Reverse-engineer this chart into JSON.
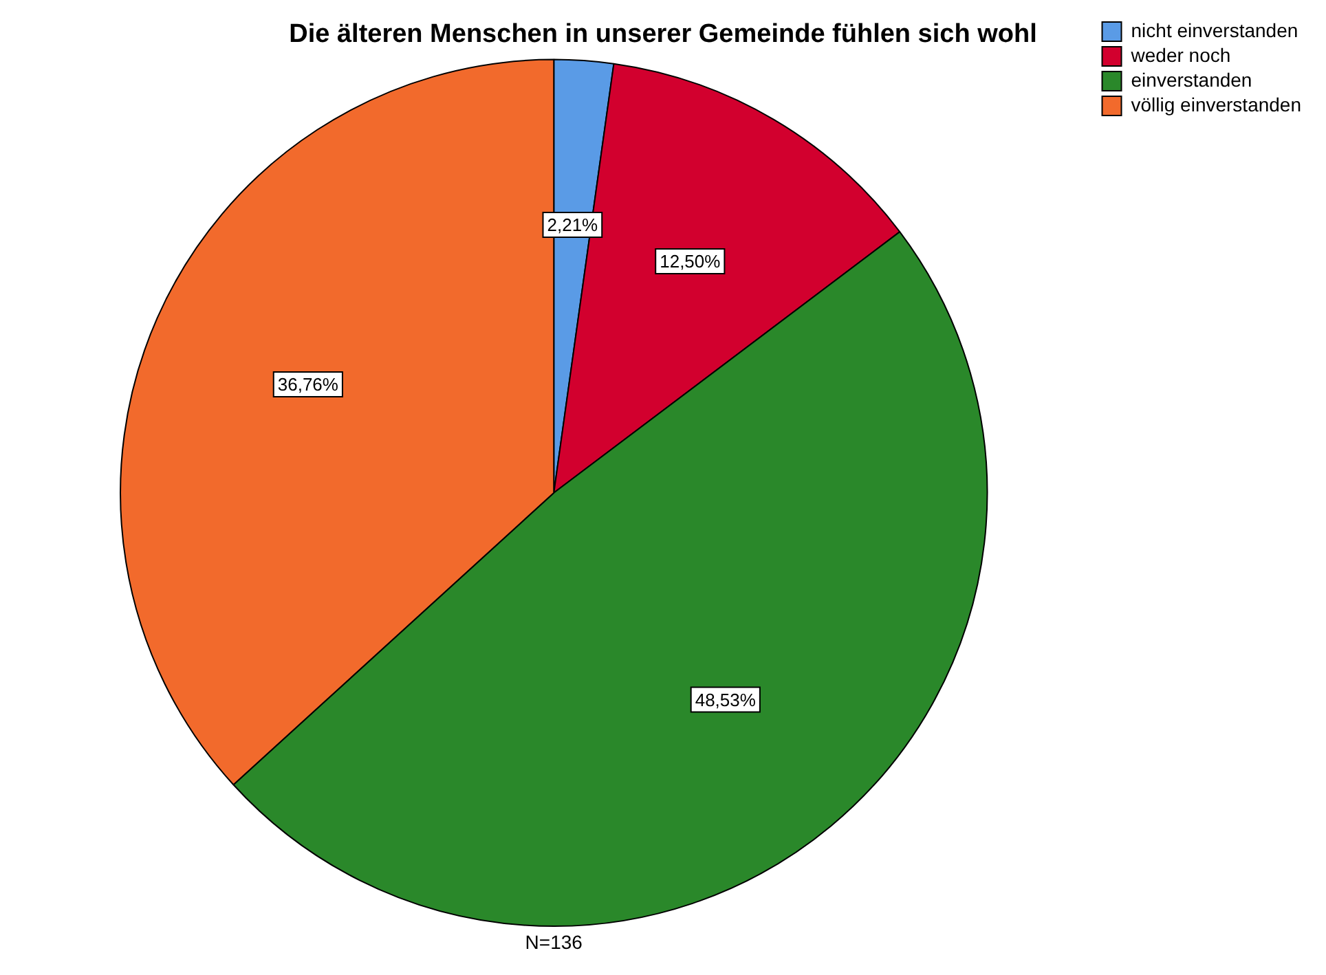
{
  "chart_data": {
    "type": "pie",
    "title": "Die älteren Menschen in unserer Gemeinde fühlen sich wohl",
    "categories": [
      "nicht einverstanden",
      "weder noch",
      "einverstanden",
      "völlig einverstanden"
    ],
    "values": [
      2.21,
      12.5,
      48.53,
      36.76
    ],
    "colors": [
      "#5a9be6",
      "#d2002e",
      "#2a882a",
      "#f26a2c"
    ],
    "value_labels": [
      "2,21%",
      "12,50%",
      "48,53%",
      "36,76%"
    ],
    "legend": "top right",
    "annotations": [
      "N=136"
    ]
  }
}
